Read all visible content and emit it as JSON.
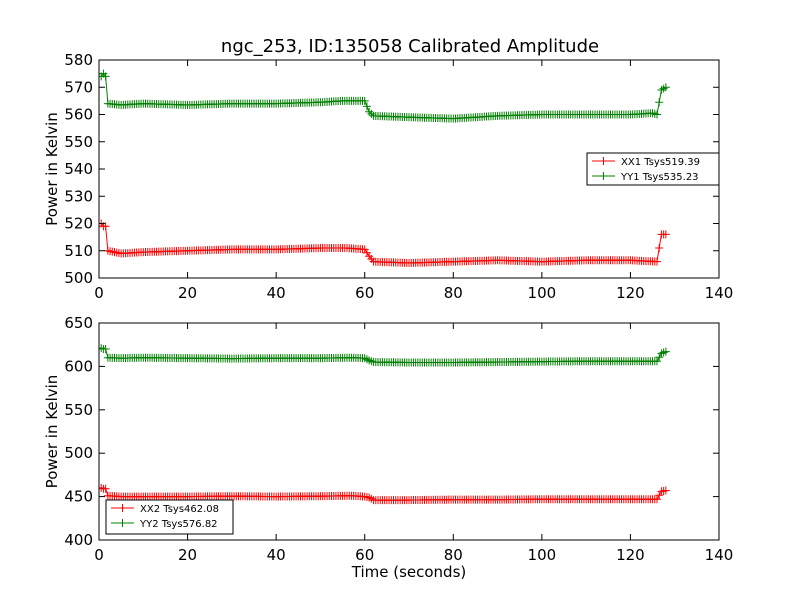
{
  "figure_title": "ngc_253, ID:135058 Calibrated Amplitude",
  "colors": {
    "xx": "#ff0000",
    "yy": "#008000"
  },
  "chart_data": [
    {
      "type": "line",
      "title": "ngc_253, ID:135058 Calibrated Amplitude",
      "xlabel": "",
      "ylabel": "Power in Kelvin",
      "xlim": [
        0,
        140
      ],
      "ylim": [
        500,
        580
      ],
      "xticks": [
        0,
        20,
        40,
        60,
        80,
        100,
        120,
        140
      ],
      "yticks": [
        500,
        510,
        520,
        530,
        540,
        550,
        560,
        570,
        580
      ],
      "marker": "plus",
      "legend_position": "center-right",
      "series": [
        {
          "name": "XX1 Tsys519.39",
          "color": "#ff0000",
          "points": [
            [
              0.5,
              520
            ],
            [
              1,
              519
            ],
            [
              1.5,
              519
            ],
            [
              2,
              510
            ],
            [
              5,
              509
            ],
            [
              10,
              509.5
            ],
            [
              20,
              510
            ],
            [
              30,
              510.5
            ],
            [
              40,
              510.5
            ],
            [
              50,
              511
            ],
            [
              56,
              511
            ],
            [
              60,
              510.5
            ],
            [
              61,
              508
            ],
            [
              62,
              506
            ],
            [
              70,
              505.5
            ],
            [
              80,
              506
            ],
            [
              90,
              506.5
            ],
            [
              100,
              506
            ],
            [
              110,
              506.5
            ],
            [
              120,
              506.5
            ],
            [
              126,
              506
            ],
            [
              127,
              516
            ],
            [
              128,
              516
            ]
          ]
        },
        {
          "name": "YY1 Tsys535.23",
          "color": "#008000",
          "points": [
            [
              0.5,
              574
            ],
            [
              1,
              575
            ],
            [
              1.5,
              574
            ],
            [
              2,
              564
            ],
            [
              5,
              563.5
            ],
            [
              10,
              564
            ],
            [
              20,
              563.5
            ],
            [
              30,
              564
            ],
            [
              40,
              564
            ],
            [
              50,
              564.5
            ],
            [
              55,
              565
            ],
            [
              60,
              565
            ],
            [
              61,
              561
            ],
            [
              62,
              559.5
            ],
            [
              70,
              559
            ],
            [
              80,
              558.5
            ],
            [
              90,
              559.5
            ],
            [
              100,
              560
            ],
            [
              110,
              560
            ],
            [
              120,
              560
            ],
            [
              125,
              560.5
            ],
            [
              126,
              560
            ],
            [
              127,
              569
            ],
            [
              128,
              570
            ]
          ]
        }
      ]
    },
    {
      "type": "line",
      "title": "",
      "xlabel": "Time (seconds)",
      "ylabel": "Power in Kelvin",
      "xlim": [
        0,
        140
      ],
      "ylim": [
        400,
        650
      ],
      "xticks": [
        0,
        20,
        40,
        60,
        80,
        100,
        120,
        140
      ],
      "yticks": [
        400,
        450,
        500,
        550,
        600,
        650
      ],
      "marker": "plus",
      "legend_position": "lower-left",
      "series": [
        {
          "name": "XX2 Tsys462.08",
          "color": "#ff0000",
          "points": [
            [
              0.5,
              460
            ],
            [
              1,
              459
            ],
            [
              1.5,
              459
            ],
            [
              2,
              451
            ],
            [
              5,
              450
            ],
            [
              10,
              450
            ],
            [
              20,
              450
            ],
            [
              30,
              450.5
            ],
            [
              40,
              450
            ],
            [
              50,
              450.5
            ],
            [
              57,
              451
            ],
            [
              60,
              450
            ],
            [
              61,
              449
            ],
            [
              62,
              446
            ],
            [
              70,
              446
            ],
            [
              80,
              446.5
            ],
            [
              90,
              446.5
            ],
            [
              100,
              447
            ],
            [
              110,
              447
            ],
            [
              120,
              447
            ],
            [
              126,
              447
            ],
            [
              127,
              456
            ],
            [
              128,
              457
            ]
          ]
        },
        {
          "name": "YY2 Tsys576.82",
          "color": "#008000",
          "points": [
            [
              0.5,
              621
            ],
            [
              1,
              620
            ],
            [
              1.5,
              620
            ],
            [
              2,
              610
            ],
            [
              5,
              609.5
            ],
            [
              10,
              610
            ],
            [
              20,
              609.5
            ],
            [
              30,
              609
            ],
            [
              40,
              609.5
            ],
            [
              50,
              609.5
            ],
            [
              57,
              610
            ],
            [
              60,
              609.5
            ],
            [
              61,
              607
            ],
            [
              62,
              605
            ],
            [
              70,
              604.5
            ],
            [
              80,
              604.5
            ],
            [
              90,
              605
            ],
            [
              100,
              605.5
            ],
            [
              110,
              606
            ],
            [
              120,
              606
            ],
            [
              126,
              606
            ],
            [
              127,
              615
            ],
            [
              128,
              617
            ]
          ]
        }
      ]
    }
  ]
}
